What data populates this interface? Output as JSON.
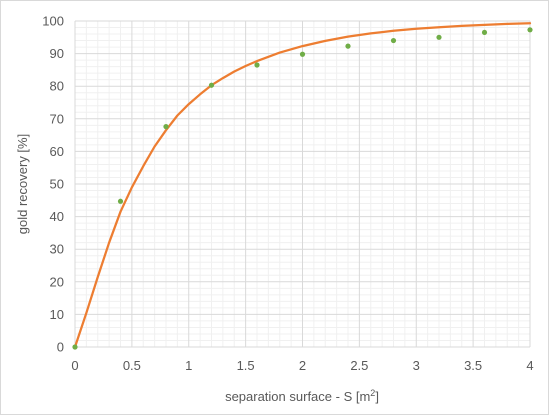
{
  "chart_data": {
    "type": "scatter",
    "xlabel_main": "separation surface - S [m",
    "xlabel_sup": "2",
    "xlabel_end": "]",
    "ylabel": "gold recovery [%]",
    "xlim": [
      0,
      4
    ],
    "ylim": [
      0,
      100
    ],
    "x_ticks": [
      "0",
      "0.5",
      "1",
      "1.5",
      "2",
      "2.5",
      "3",
      "3.5",
      "4"
    ],
    "y_ticks": [
      "0",
      "10",
      "20",
      "30",
      "40",
      "50",
      "60",
      "70",
      "80",
      "90",
      "100"
    ],
    "grid": true,
    "series": [
      {
        "kind": "points",
        "color": "#70ad47",
        "x": [
          0,
          0.4,
          0.8,
          1.2,
          1.6,
          2.0,
          2.4,
          2.8,
          3.2,
          3.6,
          4.0
        ],
        "y": [
          0,
          44.7,
          67.6,
          80.3,
          86.5,
          89.8,
          92.3,
          94.0,
          95.0,
          96.5,
          97.3
        ]
      },
      {
        "kind": "line",
        "color": "#ed7d31",
        "x": [
          0,
          0.1,
          0.2,
          0.3,
          0.4,
          0.5,
          0.6,
          0.7,
          0.8,
          0.9,
          1.0,
          1.1,
          1.2,
          1.3,
          1.4,
          1.5,
          1.6,
          1.8,
          2.0,
          2.2,
          2.4,
          2.6,
          2.8,
          3.0,
          3.2,
          3.4,
          3.6,
          3.8,
          4.0
        ],
        "y": [
          0,
          10.5,
          21.5,
          32,
          41.5,
          49,
          55.5,
          61.5,
          66.5,
          71,
          74.5,
          77.5,
          80.3,
          82.5,
          84.5,
          86.2,
          87.7,
          90.3,
          92.3,
          93.9,
          95.2,
          96.2,
          97.0,
          97.6,
          98.1,
          98.5,
          98.8,
          99.1,
          99.3
        ]
      }
    ]
  }
}
